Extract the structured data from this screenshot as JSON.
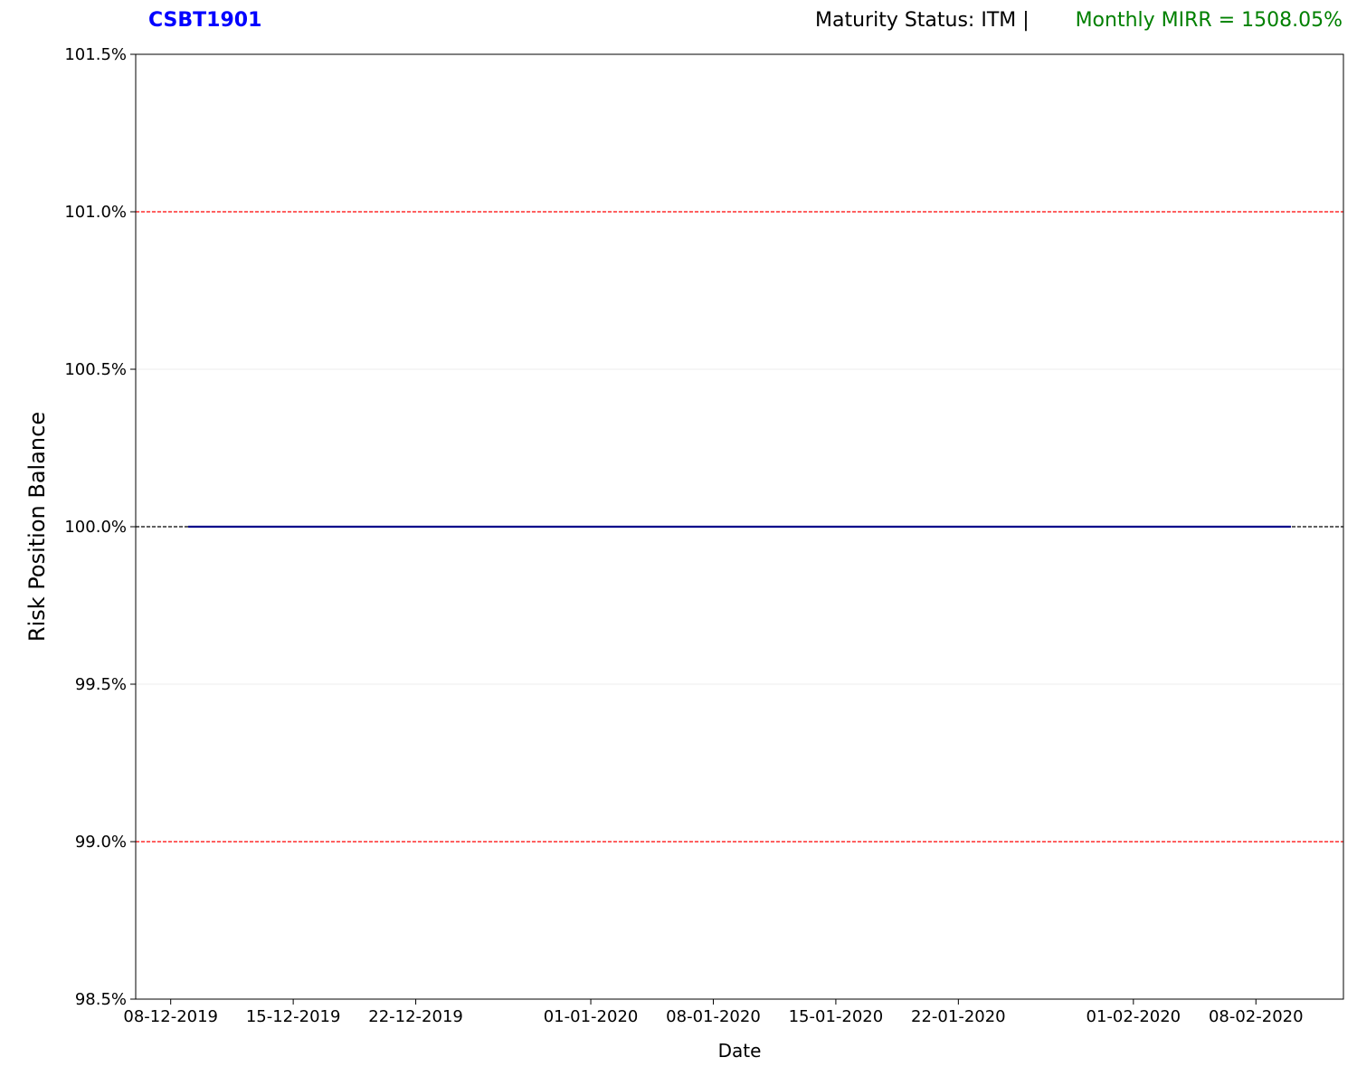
{
  "header": {
    "ticker": "CSBT1901",
    "status": "Maturity Status: ITM |",
    "mirr": "Monthly MIRR = 1508.05%"
  },
  "colors": {
    "ticker": "#0000ff",
    "mirr": "#008000",
    "series": "#00008b",
    "threshold": "#ff0000",
    "baseline": "#000000",
    "grid": "#e8e8e8"
  },
  "chart_data": {
    "type": "line",
    "xlabel": "Date",
    "ylabel": "Risk Position Balance",
    "x_ticks": [
      "08-12-2019",
      "15-12-2019",
      "22-12-2019",
      "01-01-2020",
      "08-01-2020",
      "15-01-2020",
      "22-01-2020",
      "01-02-2020",
      "08-02-2020"
    ],
    "y_ticks": [
      98.5,
      99.0,
      99.5,
      100.0,
      100.5,
      101.0,
      101.5
    ],
    "y_tick_format": "percent_1dp",
    "xlim": [
      "2019-12-06",
      "2020-02-13"
    ],
    "ylim": [
      98.5,
      101.5
    ],
    "grid": "horizontal",
    "reference_lines": [
      {
        "y": 101.0,
        "style": "dashed",
        "color": "red"
      },
      {
        "y": 99.0,
        "style": "dashed",
        "color": "red"
      },
      {
        "y": 100.0,
        "style": "dashed",
        "color": "black"
      }
    ],
    "series": [
      {
        "x": [
          "2019-12-09",
          "2020-02-10"
        ],
        "y": [
          100.0,
          100.0
        ]
      }
    ]
  }
}
